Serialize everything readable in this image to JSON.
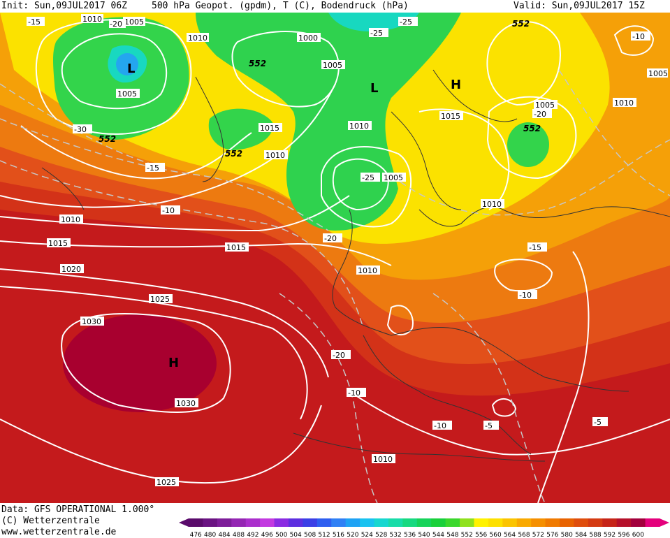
{
  "header": {
    "init": "Init: Sun,09JUL2017 06Z",
    "title": "500 hPa Geopot. (gpdm), T (C), Bodendruck (hPa)",
    "valid": "Valid: Sun,09JUL2017 15Z"
  },
  "footer": {
    "data": "Data: GFS OPERATIONAL 1.000°",
    "copyright": "(C) Wetterzentrale",
    "url": "www.wetterzentrale.de"
  },
  "legend": {
    "values": [
      "476",
      "480",
      "484",
      "488",
      "492",
      "496",
      "500",
      "504",
      "508",
      "512",
      "516",
      "520",
      "524",
      "528",
      "532",
      "536",
      "540",
      "544",
      "548",
      "552",
      "556",
      "560",
      "564",
      "568",
      "572",
      "576",
      "580",
      "584",
      "588",
      "592",
      "596",
      "600"
    ],
    "colors": [
      "#5a0b6b",
      "#6a1382",
      "#7d1d99",
      "#9426b3",
      "#aa2fcc",
      "#c239e0",
      "#8a2be2",
      "#5d2fe0",
      "#3b3fe6",
      "#2e5ef0",
      "#2f80f5",
      "#1ea2f4",
      "#19c2f0",
      "#17d7d0",
      "#18dca8",
      "#17d980",
      "#16d35a",
      "#18d03a",
      "#3ad72c",
      "#8fe11d",
      "#fff200",
      "#fde000",
      "#fbc400",
      "#f9a900",
      "#f58f00",
      "#f07a00",
      "#e86200",
      "#df4d0c",
      "#d43a12",
      "#c62418",
      "#b5102a",
      "#a2003c",
      "#e4007c"
    ]
  },
  "map": {
    "colors": {
      "deep_red": "#a3002e",
      "dark_red": "#c4161c",
      "red": "#d9361a",
      "orange_red": "#e65314",
      "orange": "#f07d0b",
      "light_orange": "#f7a006",
      "yellow": "#fde800",
      "green": "#2ed34d",
      "light_green": "#47dd3c",
      "cyan": "#17d7c8",
      "blue": "#22a3ef"
    },
    "pressure_labels": [
      "1010",
      "1005",
      "1010",
      "1000",
      "1005",
      "1015",
      "1010",
      "1010",
      "1005",
      "1015",
      "1010",
      "1005",
      "1005",
      "1010",
      "1015",
      "1015",
      "1010",
      "1010",
      "1020",
      "1025",
      "1030",
      "1030",
      "1025",
      "1010"
    ],
    "temp_labels": [
      "-15",
      "-20",
      "-25",
      "-25",
      "-10",
      "-20",
      "-30",
      "-15",
      "-10",
      "-20",
      "-25",
      "-15",
      "-10",
      "-20",
      "-15",
      "-10",
      "-10",
      "-5",
      "-5"
    ],
    "geopot_labels": [
      "552",
      "552",
      "552",
      "552",
      "552"
    ],
    "centers": [
      "L",
      "L",
      "H",
      "H"
    ]
  }
}
